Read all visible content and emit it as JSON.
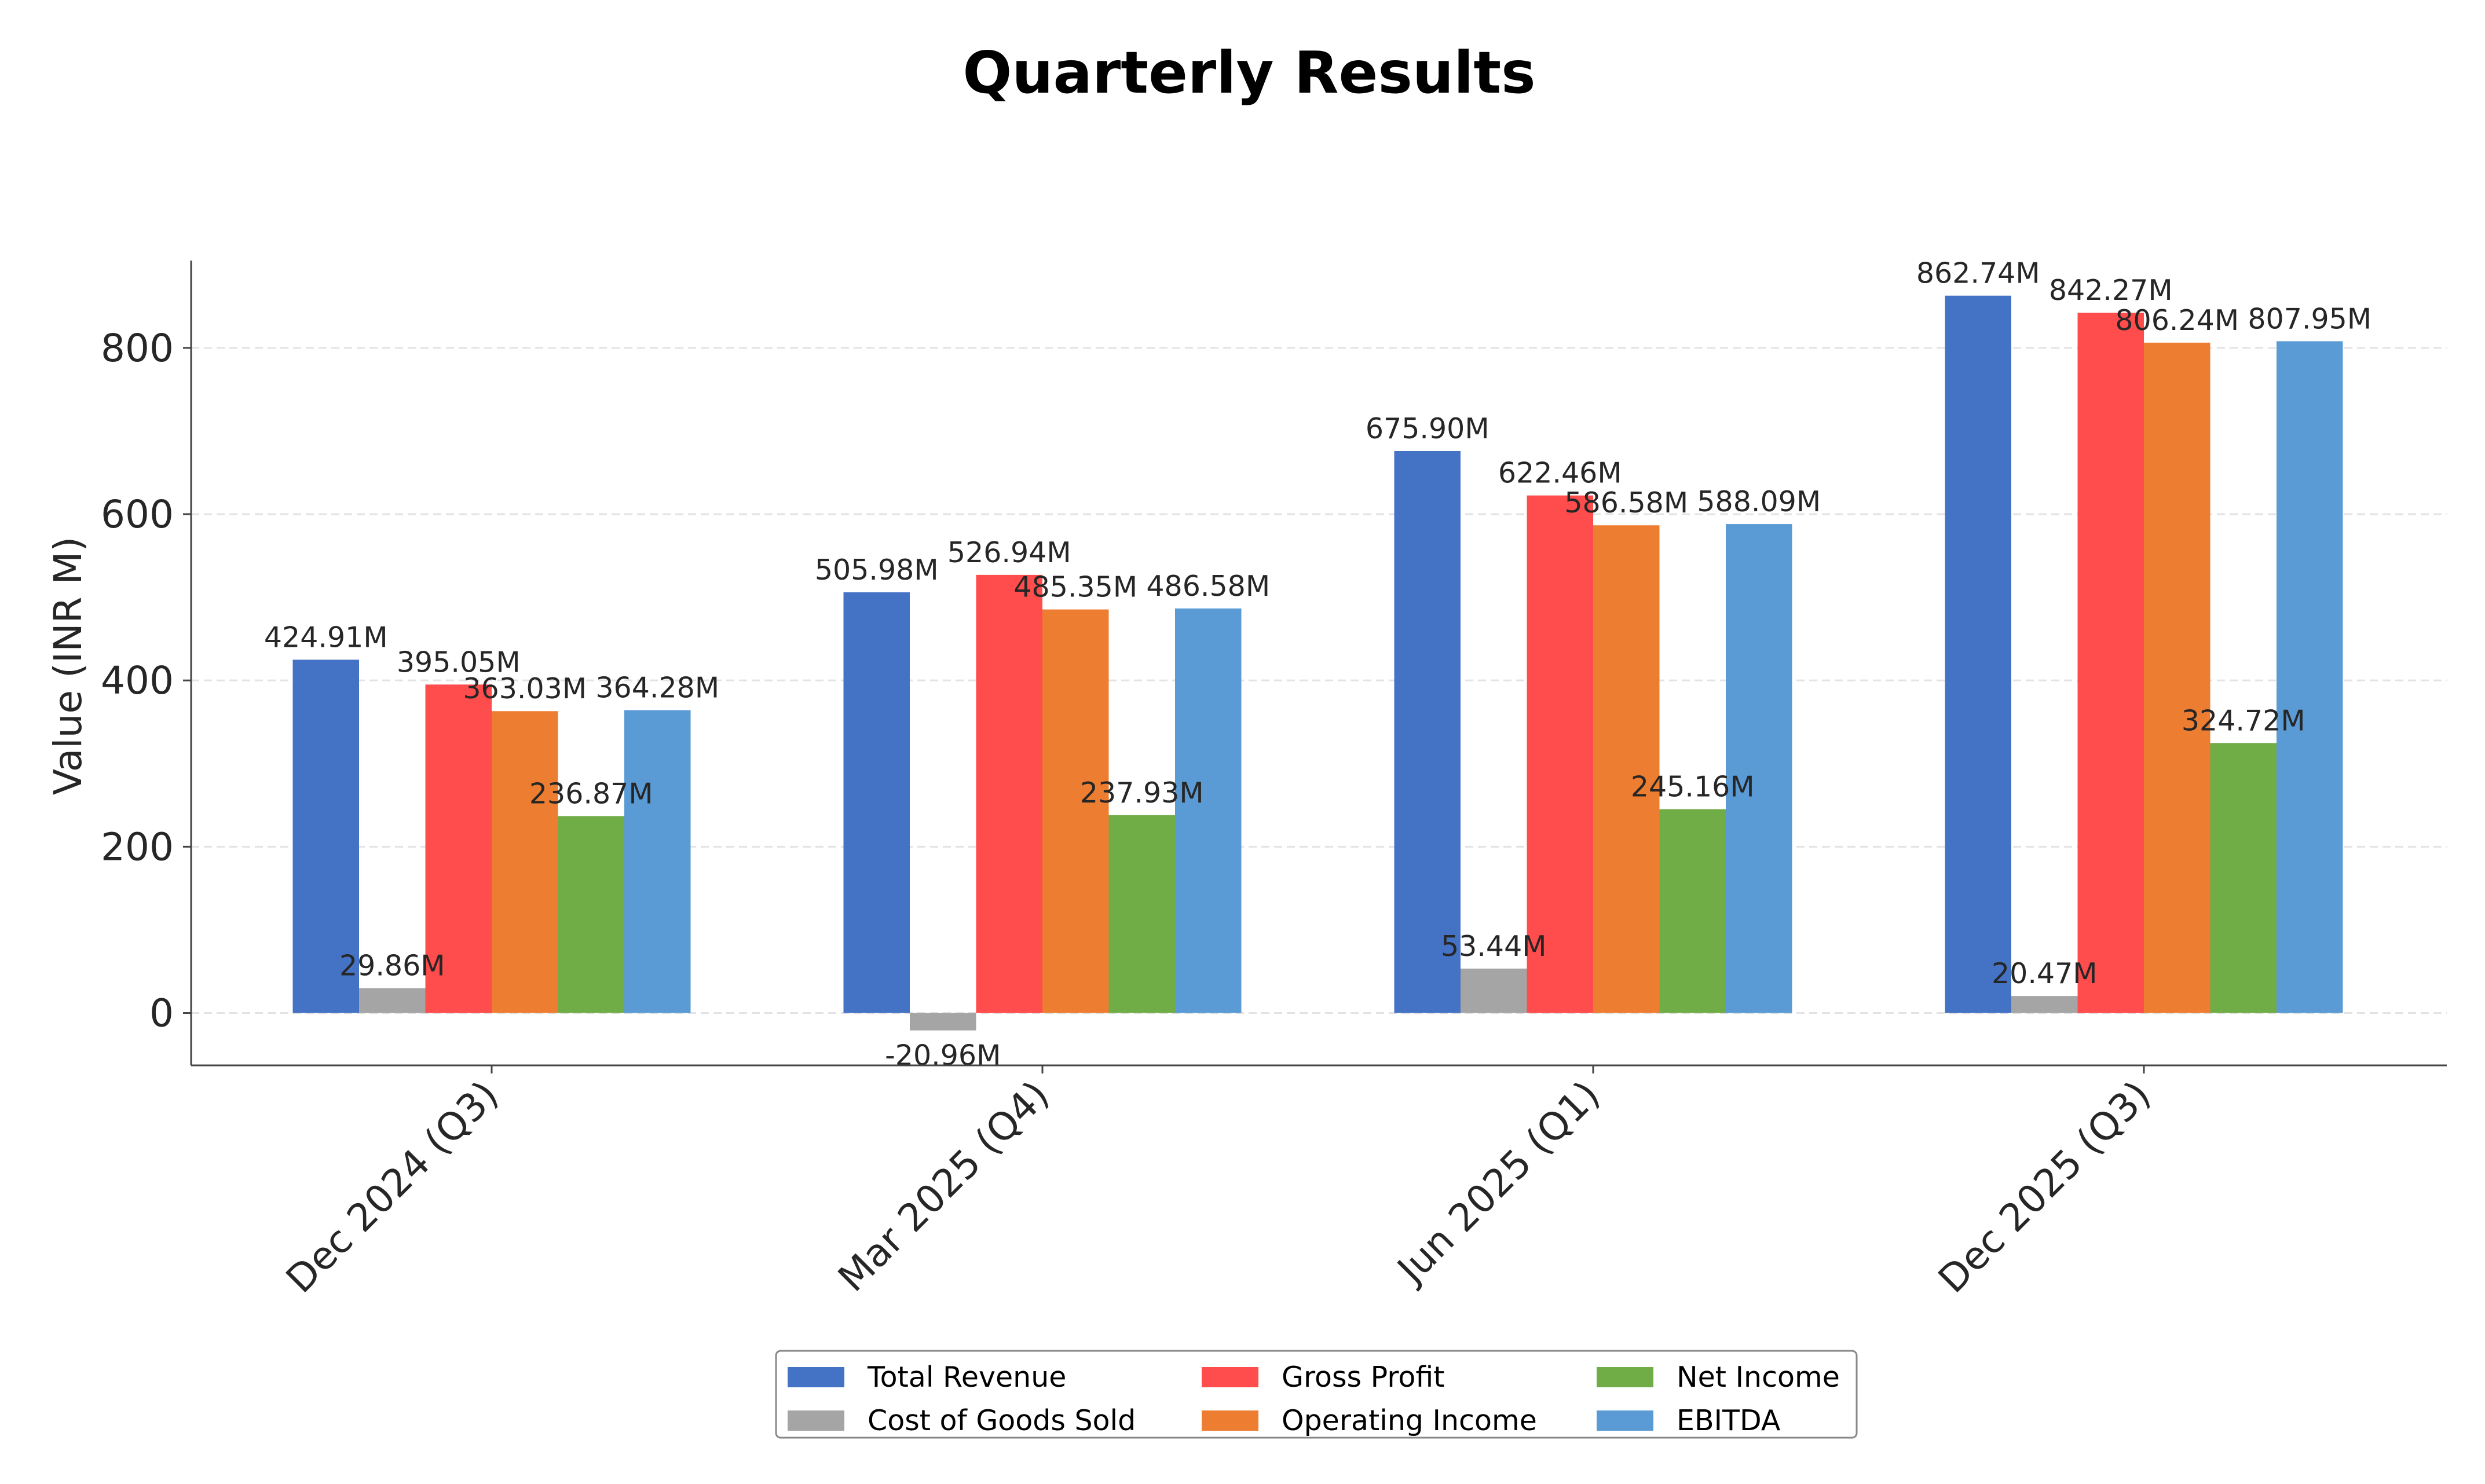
{
  "chart_data": {
    "type": "bar",
    "title": "Quarterly Results",
    "xlabel": "",
    "ylabel": "Value (INR M)",
    "ylim": [
      -63,
      905
    ],
    "yticks": [
      0,
      200,
      400,
      600,
      800
    ],
    "grid": "y-dashed",
    "legend_position": "bottom-center",
    "categories": [
      "Dec 2024 (Q3)",
      "Mar 2025 (Q4)",
      "Jun 2025 (Q1)",
      "Dec 2025 (Q3)"
    ],
    "series": [
      {
        "name": "Total Revenue",
        "color": "#4472C4",
        "values": [
          424.91,
          505.98,
          675.9,
          862.74
        ],
        "labels": [
          "424.91M",
          "505.98M",
          "675.90M",
          "862.74M"
        ]
      },
      {
        "name": "Cost of Goods Sold",
        "color": "#A5A5A5",
        "values": [
          29.86,
          -20.96,
          53.44,
          20.47
        ],
        "labels": [
          "29.86M",
          "-20.96M",
          "53.44M",
          "20.47M"
        ]
      },
      {
        "name": "Gross Profit",
        "color": "#FF4C4C",
        "values": [
          395.05,
          526.94,
          622.46,
          842.27
        ],
        "labels": [
          "395.05M",
          "526.94M",
          "622.46M",
          "842.27M"
        ]
      },
      {
        "name": "Operating Income",
        "color": "#ED7D31",
        "values": [
          363.03,
          485.35,
          586.58,
          806.24
        ],
        "labels": [
          "363.03M",
          "485.35M",
          "586.58M",
          "806.24M"
        ]
      },
      {
        "name": "Net Income",
        "color": "#70AD47",
        "values": [
          236.87,
          237.93,
          245.16,
          324.72
        ],
        "labels": [
          "236.87M",
          "237.93M",
          "245.16M",
          "324.72M"
        ]
      },
      {
        "name": "EBITDA",
        "color": "#5B9BD5",
        "values": [
          364.28,
          486.58,
          588.09,
          807.95
        ],
        "labels": [
          "364.28M",
          "486.58M",
          "588.09M",
          "807.95M"
        ]
      }
    ]
  }
}
